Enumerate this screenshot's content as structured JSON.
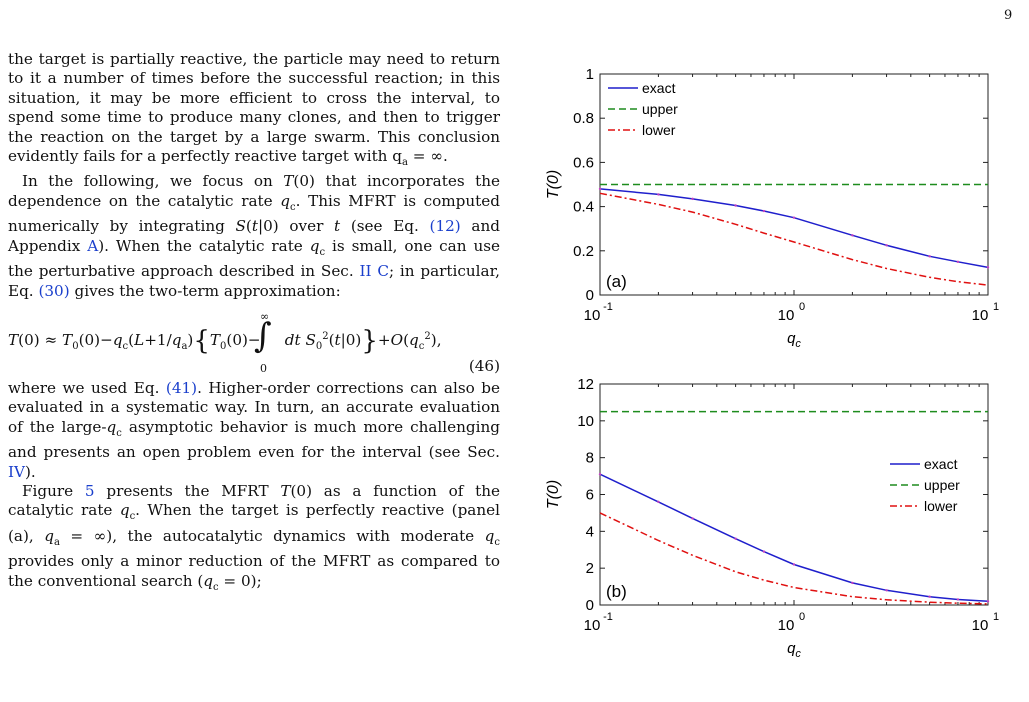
{
  "page_number": "9",
  "text": {
    "p1": "the target is partially reactive, the particle may need to return to it a number of times before the successful reaction; in this situation, it may be more efficient to cross the interval, to spend some time to produce many clones, and then to trigger the reaction on the target by a large swarm. This conclusion evidently fails for a perfectly reactive target with q",
    "p1_end": " = ∞.",
    "p2a": "In the following, we focus on ",
    "p2b": " that incorporates the dependence on the catalytic rate ",
    "p2c": ". This MFRT is computed numerically by integrating ",
    "p2d": " over ",
    "p2e": " (see Eq. ",
    "p2_ref1": "(12)",
    "p2f": " and Appendix ",
    "p2_ref2": "A",
    "p2g": "). When the catalytic rate ",
    "p2h": " is small, one can use the perturbative approach described in Sec. ",
    "p2_ref3": "II C",
    "p2i": "; in particular, Eq. ",
    "p2_ref4": "(30)",
    "p2j": " gives the two-term approximation:",
    "eq_number": "(46)",
    "p3a": "where we used Eq. ",
    "p3_ref1": "(41)",
    "p3b": ". Higher-order corrections can also be evaluated in a systematic way. In turn, an accurate evaluation of the large-",
    "p3c": " asymptotic behavior is much more challenging and presents an open problem even for the interval (see Sec. ",
    "p3_ref2": "IV",
    "p3d": ").",
    "p4a": "Figure ",
    "p4_ref1": "5",
    "p4b": " presents the MFRT ",
    "p4c": " as a function of the catalytic rate ",
    "p4d": ". When the target is perfectly reactive (panel (a), ",
    "p4e": " = ∞), the autocatalytic dynamics with moderate ",
    "p4f": " provides only a minor reduction of the MFRT as compared to the conventional search (",
    "p4g": " = 0);"
  },
  "colors": {
    "exact": "#1f1fcc",
    "upper": "#1e8c1e",
    "lower": "#e01010",
    "ref": "#1a3fcc"
  },
  "chart_data": [
    {
      "type": "line",
      "panel_label": "(a)",
      "xlabel": "q_c",
      "ylabel": "T(0)",
      "xscale": "log",
      "xlim": [
        0.1,
        10
      ],
      "ylim": [
        0,
        1
      ],
      "yticks": [
        0,
        0.2,
        0.4,
        0.6,
        0.8,
        1
      ],
      "xticks": [
        0.1,
        1,
        10
      ],
      "legend_position": "top-left",
      "series": [
        {
          "name": "exact",
          "style": "solid",
          "x": [
            0.1,
            0.2,
            0.3,
            0.5,
            0.7,
            1,
            2,
            3,
            5,
            7,
            10
          ],
          "y": [
            0.48,
            0.455,
            0.435,
            0.405,
            0.38,
            0.35,
            0.27,
            0.225,
            0.175,
            0.15,
            0.125
          ]
        },
        {
          "name": "upper",
          "style": "dashed",
          "x": [
            0.1,
            10
          ],
          "y": [
            0.5,
            0.5
          ]
        },
        {
          "name": "lower",
          "style": "dashdot",
          "x": [
            0.1,
            0.2,
            0.3,
            0.5,
            0.7,
            1,
            2,
            3,
            5,
            7,
            10
          ],
          "y": [
            0.46,
            0.41,
            0.375,
            0.32,
            0.28,
            0.24,
            0.16,
            0.12,
            0.08,
            0.06,
            0.045
          ]
        }
      ]
    },
    {
      "type": "line",
      "panel_label": "(b)",
      "xlabel": "q_c",
      "ylabel": "T(0)",
      "xscale": "log",
      "xlim": [
        0.1,
        10
      ],
      "ylim": [
        0,
        12
      ],
      "yticks": [
        0,
        2,
        4,
        6,
        8,
        10,
        12
      ],
      "xticks": [
        0.1,
        1,
        10
      ],
      "legend_position": "right",
      "series": [
        {
          "name": "exact",
          "style": "solid",
          "x": [
            0.1,
            0.2,
            0.3,
            0.5,
            0.7,
            1,
            2,
            3,
            5,
            7,
            10
          ],
          "y": [
            7.1,
            5.6,
            4.7,
            3.6,
            2.9,
            2.2,
            1.2,
            0.8,
            0.45,
            0.3,
            0.2
          ]
        },
        {
          "name": "upper",
          "style": "dashed",
          "x": [
            0.1,
            10
          ],
          "y": [
            10.5,
            10.5
          ]
        },
        {
          "name": "lower",
          "style": "dashdot",
          "x": [
            0.1,
            0.2,
            0.3,
            0.5,
            0.7,
            1,
            2,
            3,
            5,
            7,
            10
          ],
          "y": [
            5.0,
            3.5,
            2.7,
            1.8,
            1.35,
            0.95,
            0.45,
            0.28,
            0.15,
            0.1,
            0.06
          ]
        }
      ]
    }
  ]
}
